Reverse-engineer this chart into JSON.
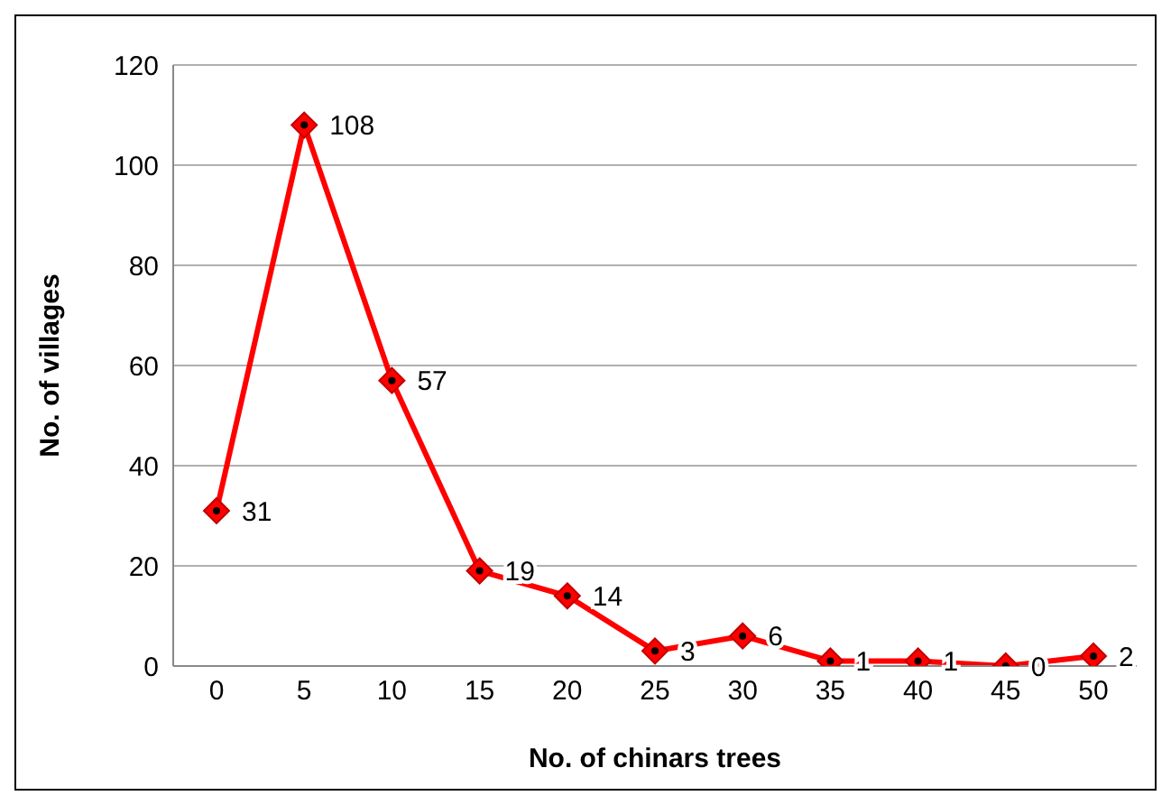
{
  "chart_data": {
    "type": "line",
    "xlabel": "No. of chinars trees",
    "ylabel": "No. of villages",
    "categories": [
      "0",
      "5",
      "10",
      "15",
      "20",
      "25",
      "30",
      "35",
      "40",
      "45",
      "50"
    ],
    "series": [
      {
        "color": "#ff0000",
        "values": [
          31,
          108,
          57,
          19,
          14,
          3,
          6,
          1,
          1,
          0,
          2
        ]
      }
    ],
    "ylim": [
      0,
      120
    ],
    "yticks": [
      0,
      20,
      40,
      60,
      80,
      100,
      120
    ],
    "grid": "y",
    "marker": "diamond",
    "line_style": "solid",
    "data_labels": true,
    "legend": false
  }
}
